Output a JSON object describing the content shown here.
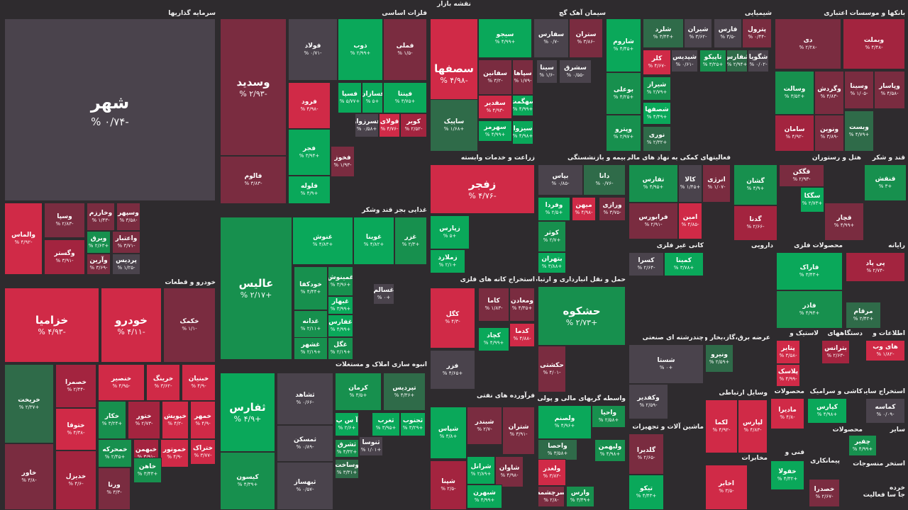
{
  "page_title": "نقشه بازار",
  "colors": {
    "g3": "#0aa85a",
    "g2": "#17904e",
    "g1": "#2f6b49",
    "n": "#4a434c",
    "r1": "#7a2c40",
    "r2": "#a3243f",
    "r3": "#d02a47"
  },
  "sectors": [
    {
      "name": "سرمایه گذاریها",
      "tiles": [
        {
          "n": "شهر",
          "p": "-۰/۷۴ %",
          "c": "n"
        },
        {
          "n": "والماس",
          "p": "-۴/۹۲ %",
          "c": "r3"
        },
        {
          "n": "وسپا",
          "p": "-۲/۸۳ %",
          "c": "r1"
        },
        {
          "n": "وخارزم",
          "p": "-۱/۴۳ %",
          "c": "r1"
        },
        {
          "n": "وسپهر",
          "p": "-۳/۵۸ %",
          "c": "r1"
        },
        {
          "n": "وگستر",
          "p": "-۳/۹۱ %",
          "c": "r2"
        },
        {
          "n": "وبرق",
          "p": "+۲/۶۳ %",
          "c": "g2"
        },
        {
          "n": "واعتبار",
          "p": "-۳/۷۱ %",
          "c": "r1"
        },
        {
          "n": "وآرین",
          "p": "-۳/۶۹ %",
          "c": "r1"
        },
        {
          "n": "پردیس",
          "p": "-۱/۲۵ %",
          "c": "n"
        }
      ]
    },
    {
      "name": "خودرو و قطعات",
      "tiles": [
        {
          "n": "خزامیا",
          "p": "-۴/۹۳ %",
          "c": "r3"
        },
        {
          "n": "خودرو",
          "p": "-۴/۱۱ %",
          "c": "r3"
        },
        {
          "n": "خکمک",
          "p": "-۱/۱ %",
          "c": "r1"
        },
        {
          "n": "خریخت",
          "p": "+۲/۳۷ %",
          "c": "g1"
        },
        {
          "n": "خاور",
          "p": "-۳/۸ %",
          "c": "r1"
        },
        {
          "n": "خصمرا",
          "p": "-۲/۴۴ %",
          "c": "r2"
        },
        {
          "n": "ختوقا",
          "p": "-۴/۳۸ %",
          "c": "r3"
        },
        {
          "n": "خدیزل",
          "p": "-۴/۶ %",
          "c": "r2"
        },
        {
          "n": "خنصیر",
          "p": "-۴/۹۵ %",
          "c": "r3"
        },
        {
          "n": "خرینگ",
          "p": "-۳/۶۲ %",
          "c": "r3"
        },
        {
          "n": "خبنیان",
          "p": "-۴/۹ %",
          "c": "r3"
        },
        {
          "n": "خکار",
          "p": "+۳/۲۴ %",
          "c": "g2"
        },
        {
          "n": "ختور",
          "p": "-۲/۷۳ %",
          "c": "r2"
        },
        {
          "n": "خپویش",
          "p": "-۴/۲ %",
          "c": "r3"
        },
        {
          "n": "خمهر",
          "p": "-۴/۹ %",
          "c": "r3"
        },
        {
          "n": "خمحرکه",
          "p": "+۲/۴۵ %",
          "c": "g2"
        },
        {
          "n": "خبهمن",
          "p": "-۳/۹۱ %",
          "c": "r2"
        },
        {
          "n": "خموتور",
          "p": "-۴/۹ %",
          "c": "r3"
        },
        {
          "n": "ختراک",
          "p": "-۳/۷۷ %",
          "c": "r3"
        },
        {
          "n": "خاهن",
          "p": "+۳/۴۳ %",
          "c": "g2"
        },
        {
          "n": "ورنا",
          "p": "-۳/۳ %",
          "c": "r1"
        }
      ]
    },
    {
      "name": "فلزات اساسی",
      "tiles": [
        {
          "n": "وسدید",
          "p": "-۲/۹۳ %",
          "c": "r1"
        },
        {
          "n": "فولاد",
          "p": "-۰/۷۱ %",
          "c": "n"
        },
        {
          "n": "ذوب",
          "p": "+۲/۹۹ %",
          "c": "g3"
        },
        {
          "n": "فملی",
          "p": "-۱/۵ %",
          "c": "r1"
        },
        {
          "n": "فالوم",
          "p": "-۳/۸۳ %",
          "c": "r1"
        },
        {
          "n": "فرود",
          "p": "-۴/۹۸ %",
          "c": "r3"
        },
        {
          "n": "فسپا",
          "p": "+۵/۷۷ %",
          "c": "g3"
        },
        {
          "n": "فسازان",
          "p": "+۵ %",
          "c": "g3"
        },
        {
          "n": "فپنتا",
          "p": "+۳/۷۵ %",
          "c": "g3"
        },
        {
          "n": "فجر",
          "p": "+۳/۹۴ %",
          "c": "g3"
        },
        {
          "n": "فسرزوار",
          "p": "+۰/۵۸ %",
          "c": "n"
        },
        {
          "n": "فولای",
          "p": "-۴/۷۶ %",
          "c": "r3"
        },
        {
          "n": "کویر",
          "p": "-۲/۵۲ %",
          "c": "r2"
        },
        {
          "n": "فخوز",
          "p": "-۱/۹۳ %",
          "c": "r1"
        },
        {
          "n": "فلوله",
          "p": "+۴/۹ %",
          "c": "g3"
        }
      ]
    },
    {
      "name": "غذایی بجز قند وشکر",
      "tiles": [
        {
          "n": "عالیس",
          "p": "+۲/۱۷ %",
          "c": "g2"
        },
        {
          "n": "غنوش",
          "p": "+۴/۸۳ %",
          "c": "g3"
        },
        {
          "n": "غوینا",
          "p": "+۴/۸۲ %",
          "c": "g3"
        },
        {
          "n": "غزر",
          "p": "+۲/۳ %",
          "c": "g2"
        },
        {
          "n": "خودکفا",
          "p": "+۴/۴۴ %",
          "c": "g2"
        },
        {
          "n": "غمینوش",
          "p": "+۳/۹۶ %",
          "c": "g2"
        },
        {
          "n": "غبهار",
          "p": "+۳/۹۹ %",
          "c": "g3"
        },
        {
          "n": "غدانه",
          "p": "+۲/۱۱ %",
          "c": "g2"
        },
        {
          "n": "غفارس",
          "p": "+۴/۹۹ %",
          "c": "g3"
        },
        {
          "n": "غشهر",
          "p": "+۲/۱۹ %",
          "c": "g2"
        },
        {
          "n": "غگل",
          "p": "+۲/۱۹ %",
          "c": "g2"
        },
        {
          "n": "غسالم",
          "p": "+۰ %",
          "c": "n"
        }
      ]
    },
    {
      "name": "انبوه سازی املاک و مستغلات",
      "tiles": [
        {
          "n": "ثفارس",
          "p": "+۴/۹ %",
          "c": "g3"
        },
        {
          "n": "کیسون",
          "p": "+۴/۳۹ %",
          "c": "g2"
        },
        {
          "n": "ثشاهد",
          "p": "-۰/۶۶ %",
          "c": "n"
        },
        {
          "n": "ثمسکن",
          "p": "-۰/۸۹ %",
          "c": "n"
        },
        {
          "n": "ثبهساز",
          "p": "-۰/۵۷ %",
          "c": "n"
        },
        {
          "n": "کرمان",
          "p": "+۳/۵ %",
          "c": "g2"
        },
        {
          "n": "تپردیس",
          "p": "+۴/۳۶ %",
          "c": "g1"
        },
        {
          "n": "آ س پ",
          "p": "+۲/۶ %",
          "c": "g3"
        },
        {
          "n": "ثغرب",
          "p": "+۳/۹۵ %",
          "c": "g3"
        },
        {
          "n": "ثجنوب",
          "p": "+۳/۲۹ %",
          "c": "g3"
        },
        {
          "n": "ثشرق",
          "p": "+۴/۳۲ %",
          "c": "g2"
        },
        {
          "n": "ثنوسا",
          "p": "+۱/۰۱ %",
          "c": "n"
        },
        {
          "n": "وساخت",
          "p": "+۳/۳۱ %",
          "c": "g1"
        }
      ]
    },
    {
      "name": "سیمان آهک گچ",
      "tiles": [
        {
          "n": "سصفها",
          "p": "-۴/۹۸ %",
          "c": "r3"
        },
        {
          "n": "سیجو",
          "p": "+۴/۹۹ %",
          "c": "g3"
        },
        {
          "n": "سفارس",
          "p": "-۰/۷ %",
          "c": "n"
        },
        {
          "n": "ستران",
          "p": "-۳/۸۶ %",
          "c": "r1"
        },
        {
          "n": "سفانین",
          "p": "-۳/۲ %",
          "c": "r1"
        },
        {
          "n": "سپاها",
          "p": "-۱/۷۹ %",
          "c": "r1"
        },
        {
          "n": "سینا",
          "p": "-۱/۶ %",
          "c": "n"
        },
        {
          "n": "سشرق",
          "p": "-۰/۵۵ %",
          "c": "n"
        },
        {
          "n": "ساپیک",
          "p": "+۱/۶۸ %",
          "c": "g1"
        },
        {
          "n": "سفدیر",
          "p": "-۴/۹۳ %",
          "c": "r3"
        },
        {
          "n": "سهگمت",
          "p": "+۴/۹۹ %",
          "c": "g3"
        },
        {
          "n": "سهرمز",
          "p": "+۴/۹۹ %",
          "c": "g3"
        },
        {
          "n": "سیزوا",
          "p": "+۴/۹۸ %",
          "c": "g3"
        }
      ]
    },
    {
      "name": "زراعت و خدمات وابسته",
      "tiles": [
        {
          "n": "زفجر",
          "p": "-۴/۷۶ %",
          "c": "r3"
        },
        {
          "n": "زپارس",
          "p": "+۵ %",
          "c": "g3"
        },
        {
          "n": "زملارد",
          "p": "+۲/۱ %",
          "c": "g3"
        }
      ]
    },
    {
      "name": "استخراج کانه های فلزی",
      "tiles": [
        {
          "n": "کگل",
          "p": "-۴/۳ %",
          "c": "r3"
        },
        {
          "n": "کاما",
          "p": "-۱/۸۳ %",
          "c": "r1"
        },
        {
          "n": "ومعادن",
          "p": "+۴/۳۵ %",
          "c": "r1"
        },
        {
          "n": "کچاد",
          "p": "+۴/۹۹ %",
          "c": "g3"
        },
        {
          "n": "کدما",
          "p": "-۴/۸۸ %",
          "c": "r3"
        },
        {
          "n": "فزر",
          "p": "+۴/۶۵ %",
          "c": "n"
        }
      ]
    },
    {
      "name": "فرآورده های نفتی",
      "tiles": [
        {
          "n": "شپاس",
          "p": "+۴/۸ %",
          "c": "g3"
        },
        {
          "n": "شبندر",
          "p": "-۲/۷ %",
          "c": "r1"
        },
        {
          "n": "شتران",
          "p": "-۳/۹۱ %",
          "c": "r1"
        },
        {
          "n": "شرانل",
          "p": "+۲/۸۹ %",
          "c": "g3"
        },
        {
          "n": "شاوان",
          "p": "-۴/۹۸ %",
          "c": "r1"
        },
        {
          "n": "شپنا",
          "p": "-۲/۵ %",
          "c": "r2"
        },
        {
          "n": "شبهرن",
          "p": "+۴/۹۹ %",
          "c": "g3"
        }
      ]
    },
    {
      "name": "بیمه و بازنشستگی",
      "tiles": [
        {
          "n": "بپاس",
          "p": "-۰/۸۵ %",
          "c": "n"
        },
        {
          "n": "دانا",
          "p": "-۰/۷۶ %",
          "c": "g1"
        },
        {
          "n": "وفردا",
          "p": "+۲/۵ %",
          "c": "g3"
        },
        {
          "n": "میهن",
          "p": "-۴/۹۸ %",
          "c": "r3"
        },
        {
          "n": "ورازی",
          "p": "-۳/۷۵ %",
          "c": "r1"
        },
        {
          "n": "کوثر",
          "p": "+۲/۷ %",
          "c": "g2"
        },
        {
          "n": "بتهران",
          "p": "+۳/۸۸ %",
          "c": "g3"
        }
      ]
    },
    {
      "name": "حمل و نقل انبارداری و ارتباطات",
      "tiles": [
        {
          "n": "حشکوه",
          "p": "+۲/۷۳ %",
          "c": "g2"
        },
        {
          "n": "حکشتی",
          "p": "-۴/۰۱ %",
          "c": "r1"
        }
      ]
    },
    {
      "name": "واسطه گریهای مالی و پولی",
      "tiles": [
        {
          "n": "ولصنم",
          "p": "+۴/۹۶ %",
          "c": "g3"
        },
        {
          "n": "واحیا",
          "p": "+۲/۵۸ %",
          "c": "g2"
        },
        {
          "n": "واحصا",
          "p": "+۳/۵۸ %",
          "c": "g1"
        },
        {
          "n": "ولبهمن",
          "p": "+۴/۹۸ %",
          "c": "g2"
        },
        {
          "n": "ولغدر",
          "p": "-۳/۸۲ %",
          "c": "r3"
        },
        {
          "n": "وارس",
          "p": "+۳/۴۹ %",
          "c": "g2"
        },
        {
          "n": "سرچشمه",
          "p": "-۲/۸ %",
          "c": "r1"
        }
      ]
    },
    {
      "name": "شیمیایی",
      "tiles": [
        {
          "n": "شاروم",
          "p": "+۴/۴۵ %",
          "c": "g3"
        },
        {
          "n": "شلرد",
          "p": "+۳/۴۴ %",
          "c": "g1"
        },
        {
          "n": "شیران",
          "p": "-۳/۶۲ %",
          "c": "n"
        },
        {
          "n": "فارس",
          "p": "-۳/۵ %",
          "c": "n"
        },
        {
          "n": "پترول",
          "p": "-۰/۴۴ %",
          "c": "r1"
        },
        {
          "n": "کلر",
          "p": "-۴/۶۷ %",
          "c": "r3"
        },
        {
          "n": "شپدیس",
          "p": "-۰/۶۱ %",
          "c": "n"
        },
        {
          "n": "تاپیکو",
          "p": "+۳/۲۵ %",
          "c": "g2"
        },
        {
          "n": "شفارس",
          "p": "+۲/۹۴ %",
          "c": "g1"
        },
        {
          "n": "شگویا",
          "p": "-۰/۰۲ %",
          "c": "n"
        },
        {
          "n": "بوعلی",
          "p": "+۴/۲۵ %",
          "c": "g2"
        },
        {
          "n": "شیراز",
          "p": "+۲/۷۹ %",
          "c": "g2"
        },
        {
          "n": "شصفها",
          "p": "+۴/۴۹ %",
          "c": "g3"
        },
        {
          "n": "وپترو",
          "p": "+۲/۹۷ %",
          "c": "g2"
        },
        {
          "n": "نوری",
          "p": "+۲/۳۲ %",
          "c": "g1"
        }
      ]
    },
    {
      "name": "فعالیتهای کمکی به نهاد های مالی",
      "tiles": [
        {
          "n": "تفارس",
          "p": "+۴/۹۵ %",
          "c": "g2"
        },
        {
          "n": "کالا",
          "p": "+۱/۴۵ %",
          "c": "n"
        },
        {
          "n": "انرژی",
          "p": "-۱/۰۷ %",
          "c": "r1"
        },
        {
          "n": "فرابورس",
          "p": "-۲/۹۱ %",
          "c": "r1"
        },
        {
          "n": "امین",
          "p": "-۴/۸۵ %",
          "c": "r3"
        }
      ]
    },
    {
      "name": "هتل و رستوران",
      "tiles": [
        {
          "n": "گشان",
          "p": "+۴/۹ %",
          "c": "g2"
        },
        {
          "n": "گدنا",
          "p": "-۲/۶۶ %",
          "c": "r2"
        }
      ]
    },
    {
      "name": "کانی غیر فلزی",
      "tiles": [
        {
          "n": "کسرا",
          "p": "-۲/۶۴ %",
          "c": "n"
        },
        {
          "n": "کمینا",
          "p": "+۳/۷۸ %",
          "c": "g3"
        }
      ]
    },
    {
      "name": "چندرشته ای صنعتی",
      "tiles": [
        {
          "n": "شستا",
          "p": "+۰ %",
          "c": "n"
        },
        {
          "n": "وکفدیر",
          "p": "-۲/۵۹ %",
          "c": "n"
        }
      ]
    },
    {
      "name": "دارویی",
      "tiles": []
    },
    {
      "name": "عرضه برق،گاز،بخار و",
      "tiles": [
        {
          "n": "ونیرو",
          "p": "+۲/۵۹ %",
          "c": "g1"
        }
      ]
    },
    {
      "name": "ماشین آلات و تجهیزات",
      "tiles": [
        {
          "n": "گلدیرا",
          "p": "-۲/۶۵ %",
          "c": "r1"
        },
        {
          "n": "تیکو",
          "p": "+۴/۴۳ %",
          "c": "g3"
        }
      ]
    },
    {
      "name": "وسایل ارتباطی",
      "tiles": [
        {
          "n": "لکما",
          "p": "-۴/۹۲ %",
          "c": "r3"
        },
        {
          "n": "لپارس",
          "p": "-۴/۸۳ %",
          "c": "r3"
        }
      ]
    },
    {
      "name": "مخابرات",
      "tiles": [
        {
          "n": "اخابر",
          "p": "-۳/۵ %",
          "c": "r3"
        }
      ]
    },
    {
      "name": "بانکها و موسسات اعتباری",
      "tiles": [
        {
          "n": "دی",
          "p": "-۲/۲۸ %",
          "c": "r1"
        },
        {
          "n": "وبملت",
          "p": "-۴/۴۸ %",
          "c": "r2"
        },
        {
          "n": "وسالت",
          "p": "+۳/۵۲ %",
          "c": "g2"
        },
        {
          "n": "وگردش",
          "p": "-۴/۸۳ %",
          "c": "r1"
        },
        {
          "n": "وسینا",
          "p": "-۱/۰۵ %",
          "c": "r1"
        },
        {
          "n": "وپاسار",
          "p": "-۴/۵۸ %",
          "c": "r1"
        },
        {
          "n": "سامان",
          "p": "-۴/۹۲ %",
          "c": "r2"
        },
        {
          "n": "ونوین",
          "p": "-۳/۸۹ %",
          "c": "r1"
        },
        {
          "n": "وبست",
          "p": "+۴/۷۹ %",
          "c": "g1"
        }
      ]
    },
    {
      "name": "قند و شکر",
      "tiles": [
        {
          "n": "قنقش",
          "p": "+۳ %",
          "c": "g2"
        },
        {
          "n": "قگکن",
          "p": "-۲/۹۳ %",
          "c": "r1"
        },
        {
          "n": "سگکا",
          "p": "+۲/۷۳ %",
          "c": "g3"
        },
        {
          "n": "قچار",
          "p": "+۴/۹۹ %",
          "c": "r1"
        }
      ]
    },
    {
      "name": "محصولات فلزی",
      "tiles": [
        {
          "n": "فاراک",
          "p": "+۳/۴۳ %",
          "c": "g3"
        },
        {
          "n": "فاذر",
          "p": "+۴/۹۴ %",
          "c": "g2"
        }
      ]
    },
    {
      "name": "رایانه",
      "tiles": [
        {
          "n": "پی پاد",
          "p": "-۲/۷۴ %",
          "c": "r2"
        },
        {
          "n": "مرقام",
          "p": "+۲/۴۲ %",
          "c": "g1"
        }
      ]
    },
    {
      "name": "لاستیک و",
      "tiles": [
        {
          "n": "پتایر",
          "p": "-۳/۵۸ %",
          "c": "r3"
        },
        {
          "n": "پلاسک",
          "p": "-۴/۹۹ %",
          "c": "r3"
        }
      ]
    },
    {
      "name": "دستگاههای",
      "tiles": [
        {
          "n": "بترانس",
          "p": "-۲/۶۳ %",
          "c": "r2"
        }
      ]
    },
    {
      "name": "اطلاعات و",
      "tiles": [
        {
          "n": "های وب",
          "p": "-۱/۸۲ %",
          "c": "r3"
        }
      ]
    },
    {
      "name": "محصولات",
      "tiles": [
        {
          "n": "مادیرا",
          "p": "-۴/۸ %",
          "c": "r3"
        }
      ]
    },
    {
      "name": "کاشی و سرامیک",
      "tiles": [
        {
          "n": "کپارس",
          "p": "+۴/۹۸ %",
          "c": "g3"
        }
      ]
    },
    {
      "name": "استخراج سایر",
      "tiles": [
        {
          "n": "کماسه",
          "p": "-۰/۰۹ %",
          "c": "n"
        }
      ]
    },
    {
      "name": "محصولات",
      "tiles": [
        {
          "n": "چفیر",
          "p": "+۴/۹۹ %",
          "c": "g2"
        }
      ]
    },
    {
      "name": "سایر",
      "tiles": []
    },
    {
      "name": "فنی و",
      "tiles": [
        {
          "n": "خفولا",
          "p": "+۴/۳۲ %",
          "c": "g3"
        }
      ]
    },
    {
      "name": "پیمانکاری",
      "tiles": [
        {
          "n": "خصدرا",
          "p": "-۲/۶۷ %",
          "c": "r1"
        }
      ]
    },
    {
      "name": "استخر منسوجات",
      "tiles": []
    },
    {
      "name": "خرده",
      "tiles": []
    },
    {
      "name": "جا سا فعالیت",
      "tiles": []
    }
  ]
}
